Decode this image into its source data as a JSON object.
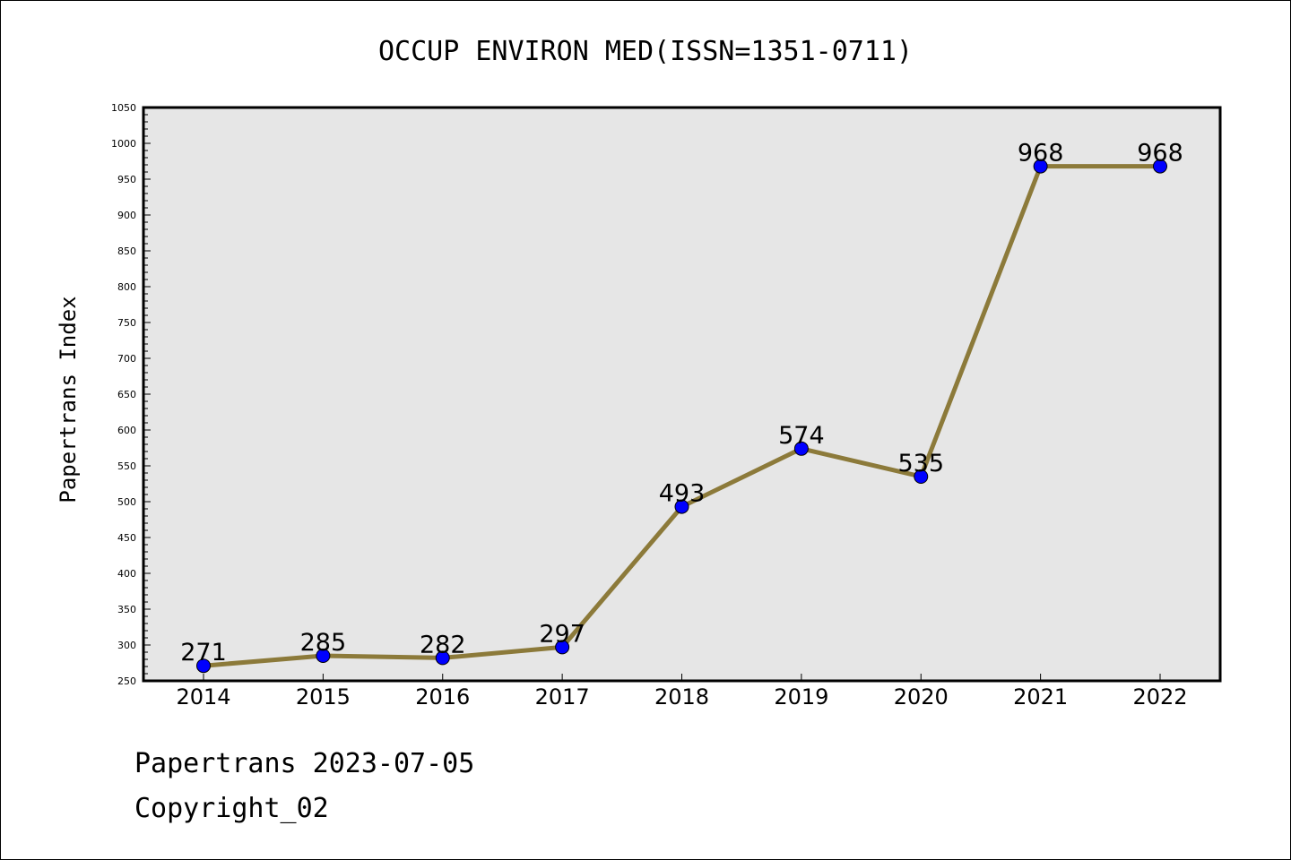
{
  "chart_data": {
    "type": "line",
    "title": "OCCUP ENVIRON MED(ISSN=1351-0711)",
    "xlabel": "",
    "ylabel": "Papertrans Index",
    "categories": [
      "2014",
      "2015",
      "2016",
      "2017",
      "2018",
      "2019",
      "2020",
      "2021",
      "2022"
    ],
    "values": [
      271,
      285,
      282,
      297,
      493,
      574,
      535,
      968,
      968
    ],
    "data_labels": [
      "271",
      "285",
      "282",
      "297",
      "493",
      "574",
      "535",
      "968",
      "968"
    ],
    "ylim": [
      250,
      1050
    ],
    "yticks": [
      250,
      300,
      350,
      400,
      450,
      500,
      550,
      600,
      650,
      700,
      750,
      800,
      850,
      900,
      950,
      1000,
      1050
    ],
    "grid": false,
    "line_color": "#8c7a3a",
    "marker_color": "#0000ff",
    "plot_background": "#e6e6e6"
  },
  "footer": {
    "line1": "Papertrans 2023-07-05",
    "line2": "Copyright_02"
  }
}
